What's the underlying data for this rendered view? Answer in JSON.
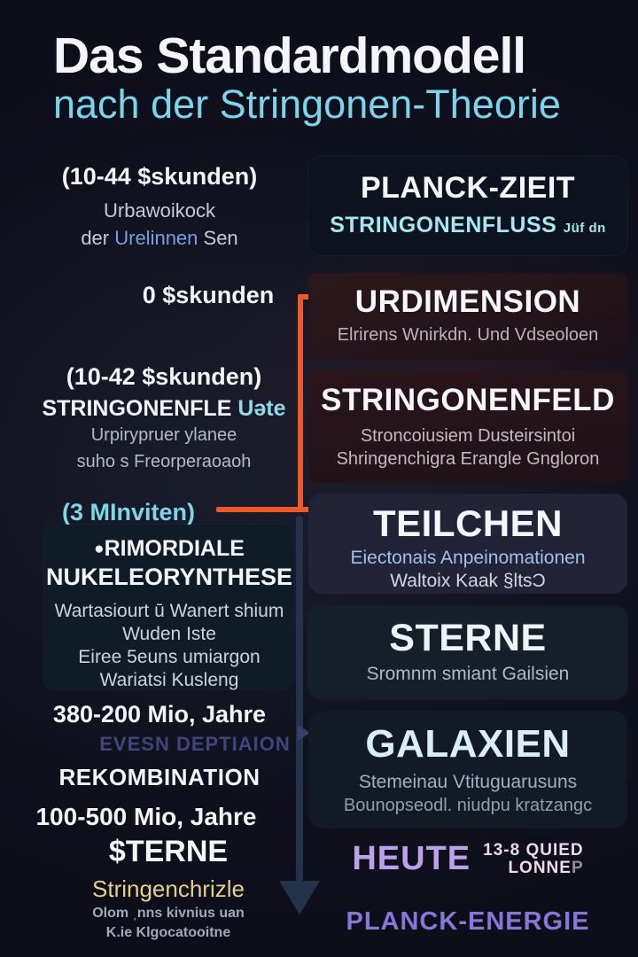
{
  "header": {
    "title": "Das Standardmodell",
    "subtitle": "nach der Stringonen-Theorie"
  },
  "colors": {
    "background": "#0e0f1c",
    "accent_orange": "#ee5a29",
    "accent_cyan": "#7bd4ea",
    "accent_lavender": "#bba2ea",
    "accent_purple": "#8677d8",
    "accent_gold": "#e5d08f",
    "accent_blue": "#7a9fe0",
    "arrow_dark": "#22334a"
  },
  "left_column": {
    "entry1": {
      "time": "(10-44 $skunden)",
      "line2": "Urbawoikock",
      "line3_prefix": "der ",
      "line3_highlight": "Urelinnen",
      "line3_suffix": " Sen"
    },
    "entry2": {
      "time": "0 $skunden"
    },
    "entry3": {
      "time": "(10-42 $skunden)",
      "label_white": "STRINGONENFLE ",
      "label_cyan": "Uəte",
      "line3": "Urpirypruer ylanee",
      "line4": "suho s Freorperaoaoh"
    },
    "entry4": {
      "time": "(3 MInviten)"
    },
    "nucleo_box": {
      "bullet": "●",
      "title_line1": "RIMORDIALE",
      "title_line2": "NUKELEORYNTHESE",
      "body": [
        "Wartasiourt ū Wanert shium",
        "Wuden Iste",
        "Eiree 5euns umiargon",
        "Wariatsi Kusleng"
      ]
    },
    "entry5": {
      "time": "380-200 Mio, Jahre"
    },
    "entry6": {
      "label": "EVESN DEPTIAION"
    },
    "entry7": {
      "label": "REKOMBINATION"
    },
    "entry8": {
      "time": "100-500 Mio, Jahre"
    },
    "entry9": {
      "label": "$TERNE"
    },
    "entry10": {
      "label": "Stringenchrizle"
    },
    "entry11": {
      "line1": "Olom ˌnns kivnius uan",
      "line2": "K.ie Klgocatooitne"
    }
  },
  "right_column": {
    "boxes": [
      {
        "title": "PLANCK-ZIEIT",
        "subtitle": "STRINGONENFLUSS",
        "subtitle_small": "Jüf dn"
      },
      {
        "title": "URDIMENSION",
        "lines": [
          "Elrirens Wnirkdn. Und Vdseoloen"
        ]
      },
      {
        "title": "STRINGONENFELD",
        "lines": [
          "Stroncoiusiem Dusteirsintoi",
          "Shringenchigra Erangle Gngloron"
        ]
      },
      {
        "title": "TEILCHEN",
        "line_blue": "Eiectonais Anpeinomationen",
        "line2": "Waltoix Kaak §ltsƆ"
      },
      {
        "title": "STERNE",
        "lines": [
          "Sromnm smiant Gailsien"
        ]
      },
      {
        "title": "GALAXIEN",
        "lines": [
          "Stemeinau Vtituguarusuns",
          "Bounopseodl. niudpu kratzangc"
        ]
      }
    ],
    "heute": {
      "label": "HEUTE",
      "annotation_top": "13-8 QUIED",
      "annotation_bottom": "LONNE",
      "annotation_suffix": "P"
    },
    "planck_energie": "PLANCK-ENERGIE"
  }
}
